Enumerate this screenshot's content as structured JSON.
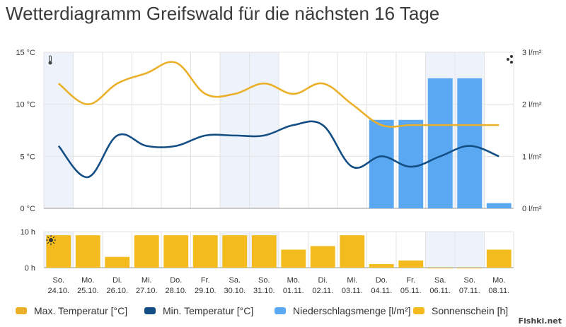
{
  "title": "Wetterdiagramm Greifswald für die nächsten 16 Tage",
  "watermark": "Fishki.net",
  "colors": {
    "max_temp": "#EBB02A",
    "min_temp": "#134F85",
    "precip": "#5AA8F2",
    "sunshine": "#F3BB1E",
    "weekend_band": "#EEF3FB",
    "grid": "#E3E3E3"
  },
  "icons": {
    "temperature_axis": "thermometer-icon",
    "precip_axis": "rain-drops-icon",
    "sunshine_axis": "sun-icon"
  },
  "chart_data": [
    {
      "type": "line+bar",
      "name": "temperature_precipitation",
      "categories": [
        [
          "So.",
          "24.10."
        ],
        [
          "Mo.",
          "25.10."
        ],
        [
          "Di.",
          "26.10."
        ],
        [
          "Mi.",
          "27.10."
        ],
        [
          "Do.",
          "28.10."
        ],
        [
          "Fr.",
          "29.10."
        ],
        [
          "Sa.",
          "30.10."
        ],
        [
          "So.",
          "31.10."
        ],
        [
          "Mo.",
          "01.11."
        ],
        [
          "Di.",
          "02.11."
        ],
        [
          "Mi.",
          "03.11."
        ],
        [
          "Do.",
          "04.11."
        ],
        [
          "Fr.",
          "05.11."
        ],
        [
          "Sa.",
          "06.11."
        ],
        [
          "So.",
          "07.11."
        ],
        [
          "Mo.",
          "08.11."
        ]
      ],
      "series": [
        {
          "name": "Max. Temperatur [°C]",
          "type": "line",
          "axis": "left",
          "values": [
            12,
            10,
            12,
            13,
            14,
            11,
            11,
            12,
            11,
            12,
            10,
            8,
            8,
            8,
            8,
            8
          ]
        },
        {
          "name": "Min. Temperatur [°C]",
          "type": "line",
          "axis": "left",
          "values": [
            6,
            3,
            7,
            6,
            6,
            7,
            7,
            7,
            8,
            8,
            4,
            5,
            4,
            5,
            6,
            5
          ]
        },
        {
          "name": "Niederschlagsmenge [l/m²]",
          "type": "bar",
          "axis": "right",
          "values": [
            0,
            0,
            0,
            0,
            0,
            0,
            0,
            0,
            0,
            0,
            0,
            1.7,
            1.7,
            2.5,
            2.5,
            0.1
          ]
        }
      ],
      "y_left": {
        "ticks": [
          "0 °C",
          "5 °C",
          "10 °C",
          "15 °C"
        ],
        "ylim": [
          0,
          15
        ]
      },
      "y_right": {
        "ticks": [
          "0 l/m²",
          "1 l/m²",
          "2 l/m²",
          "3 l/m²"
        ],
        "ylim": [
          0,
          3
        ]
      }
    },
    {
      "type": "bar",
      "name": "sunshine",
      "series": [
        {
          "name": "Sonnenschein [h]",
          "values": [
            9,
            9,
            3,
            9,
            9,
            9,
            9,
            9,
            5,
            6,
            9,
            1,
            2,
            0,
            0,
            5
          ]
        }
      ],
      "y": {
        "ticks": [
          "0 h",
          "10 h"
        ],
        "ylim": [
          0,
          10
        ]
      }
    }
  ],
  "weekend_days": [
    0,
    6,
    7,
    13,
    14
  ],
  "legend": [
    {
      "label": "Max. Temperatur [°C]",
      "color": "#EBB02A"
    },
    {
      "label": "Min. Temperatur [°C]",
      "color": "#134F85"
    },
    {
      "label": "Niederschlagsmenge [l/m²]",
      "color": "#5AA8F2"
    },
    {
      "label": "Sonnenschein [h]",
      "color": "#F3BB1E"
    }
  ]
}
